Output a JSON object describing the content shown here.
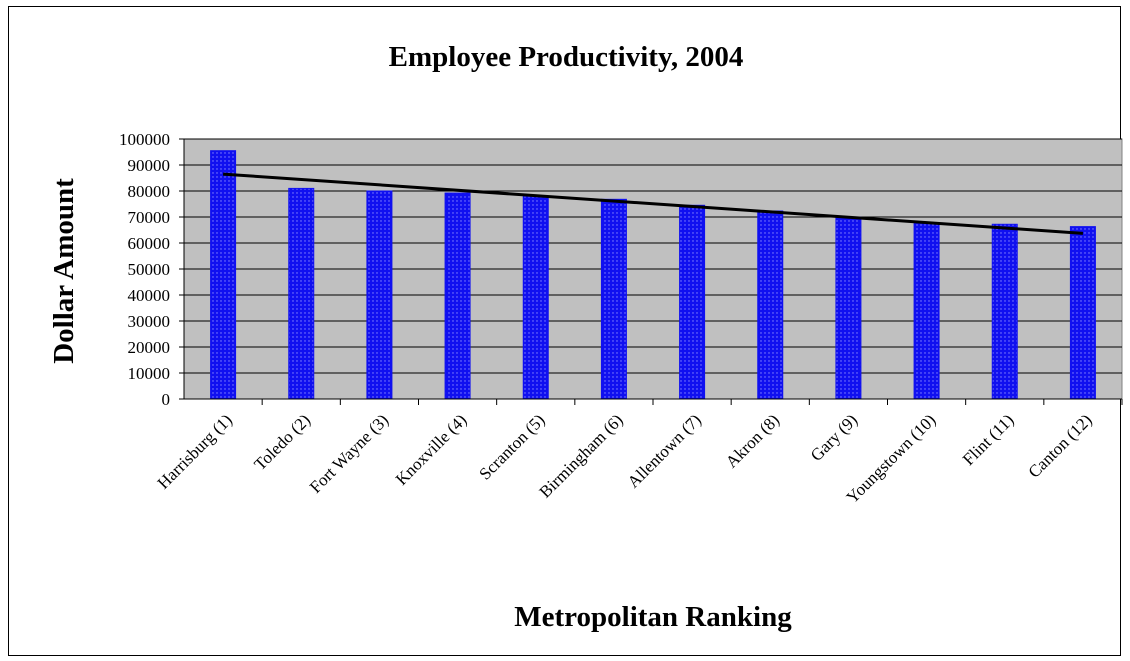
{
  "colors": {
    "plot_area": "#c0c0c0",
    "bar_fill": "#1010f0",
    "bar_dot": "#8a8aff",
    "trendline": "#000000",
    "gridline": "#000000"
  },
  "chart_data": {
    "type": "bar",
    "title": "Employee Productivity, 2004",
    "xlabel": "Metropolitan Ranking",
    "ylabel": "Dollar Amount",
    "categories": [
      "Harrisburg (1)",
      "Toledo (2)",
      "Fort Wayne (3)",
      "Knoxville (4)",
      "Scranton (5)",
      "Birmingham (6)",
      "Allentown (7)",
      "Akron (8)",
      "Gary (9)",
      "Youngstown (10)",
      "Flint (11)",
      "Canton (12)"
    ],
    "values": [
      95500,
      81000,
      80000,
      79200,
      78000,
      76800,
      74500,
      72300,
      70000,
      67800,
      67200,
      66300
    ],
    "ylim": [
      0,
      100000
    ],
    "yticks": [
      "0",
      "10000",
      "20000",
      "30000",
      "40000",
      "50000",
      "60000",
      "70000",
      "80000",
      "90000",
      "100000"
    ],
    "grid": true,
    "legend": "none",
    "trendline": {
      "type": "linear",
      "start": 86500,
      "end": 63700
    }
  }
}
